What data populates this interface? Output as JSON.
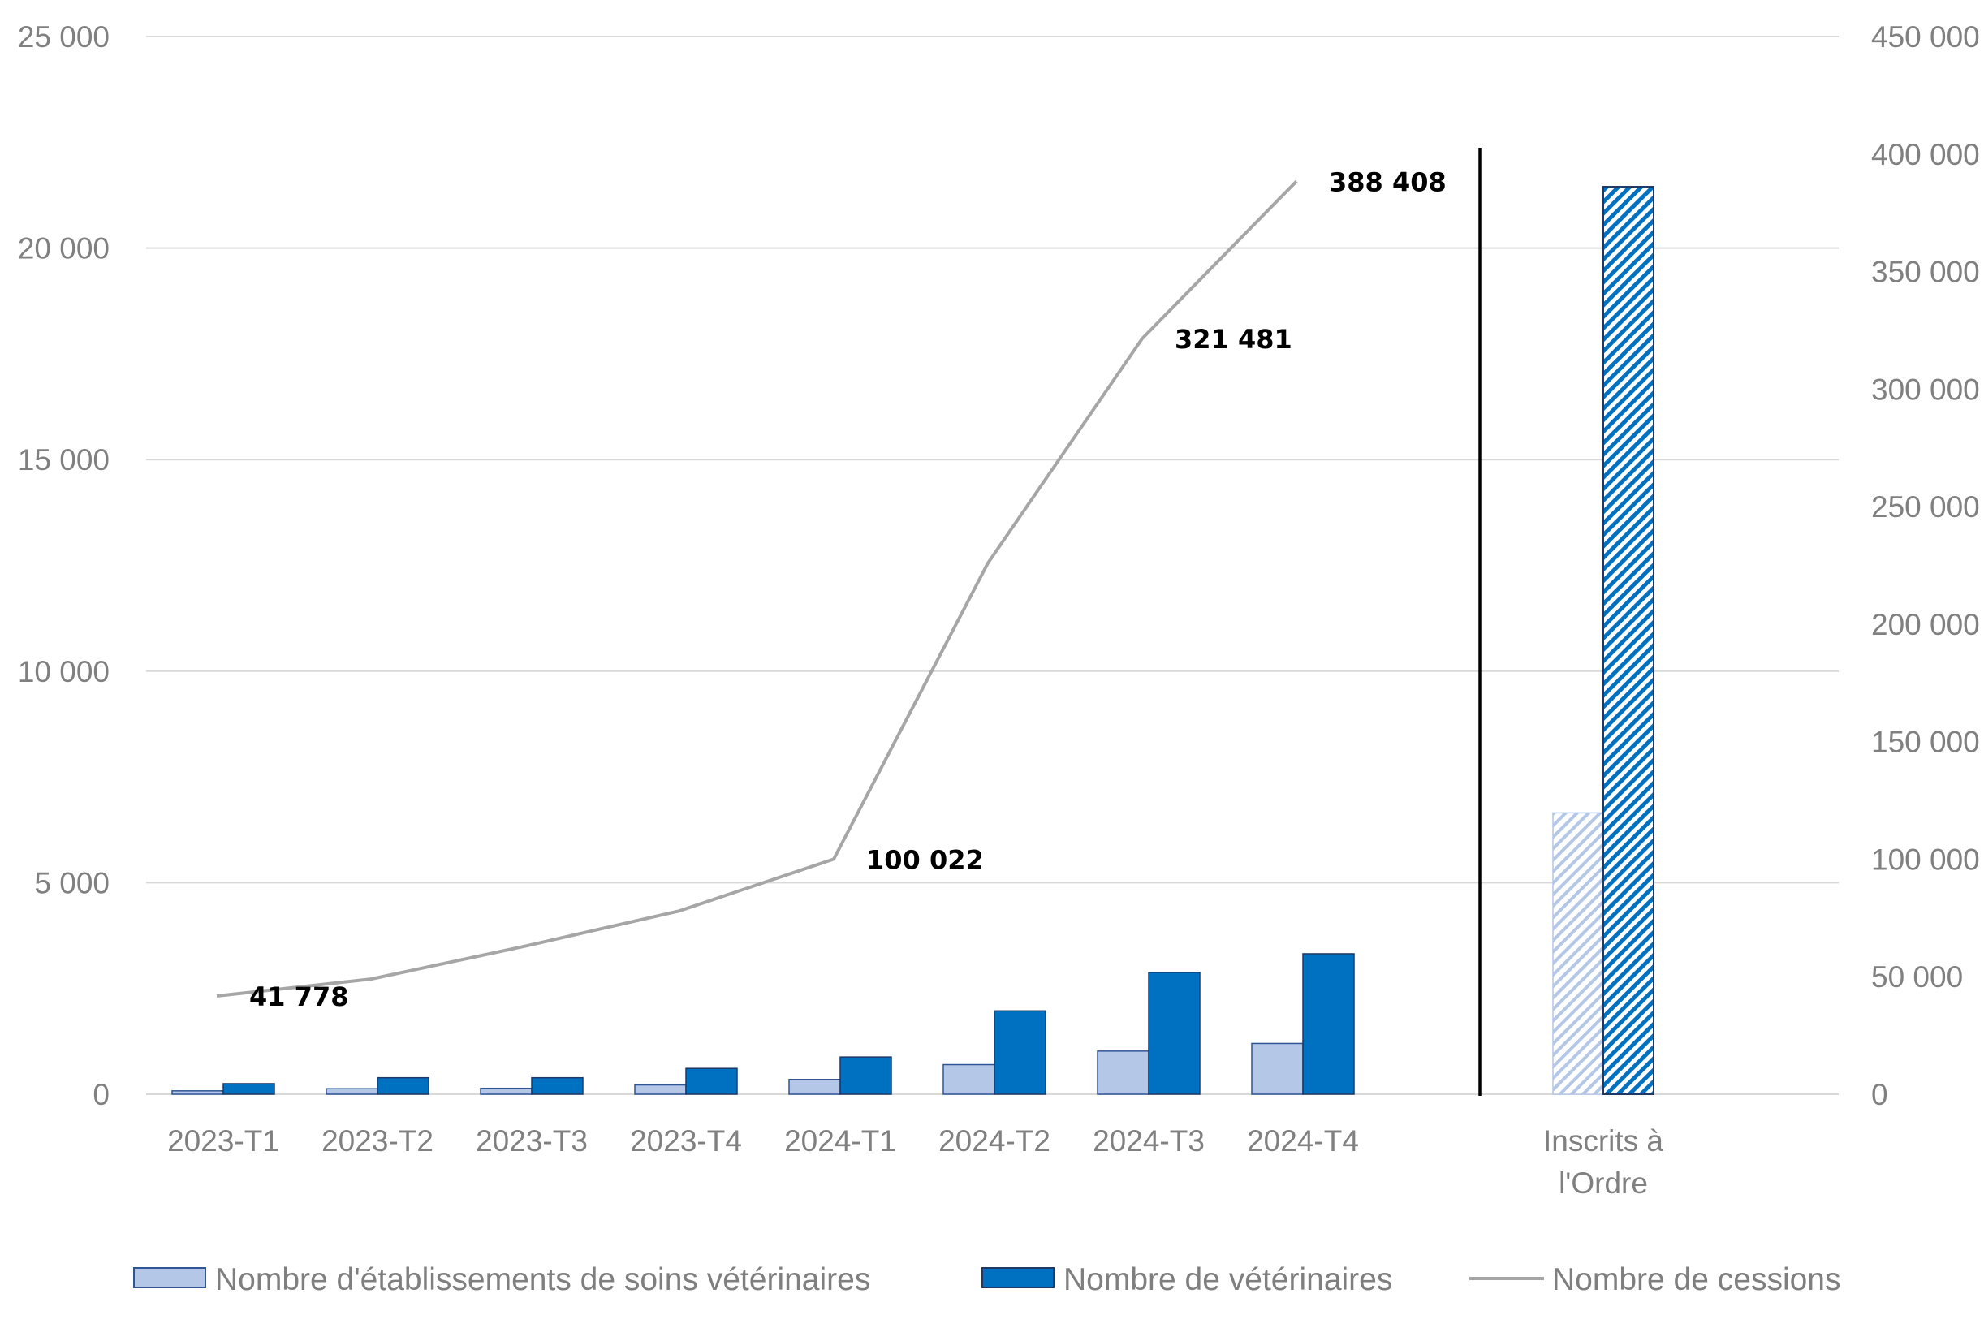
{
  "chart_data": {
    "type": "bar",
    "categories": [
      "2023-T1",
      "2023-T2",
      "2023-T3",
      "2023-T4",
      "2024-T1",
      "2024-T2",
      "2024-T3",
      "2024-T4"
    ],
    "separate_category": [
      "Inscrits à",
      "l'Ordre"
    ],
    "series": [
      {
        "name": "Nombre d'établissements de soins vétérinaires",
        "axis": "left",
        "type": "bar",
        "color": "#b4c7e7",
        "values": [
          80,
          130,
          140,
          220,
          350,
          700,
          1020,
          1200
        ],
        "separate_value": 6650,
        "separate_pattern": "hatched"
      },
      {
        "name": "Nombre de vétérinaires",
        "axis": "left",
        "type": "bar",
        "color": "#0070c0",
        "values": [
          250,
          390,
          390,
          610,
          880,
          1970,
          2880,
          3320
        ],
        "separate_value": 21450,
        "separate_pattern": "hatched"
      },
      {
        "name": "Nombre de cessions",
        "axis": "right",
        "type": "line",
        "color": "#a6a6a6",
        "values": [
          41778,
          49000,
          63000,
          78000,
          100022,
          226000,
          321481,
          388408
        ]
      }
    ],
    "data_labels": [
      {
        "series": 2,
        "index": 0,
        "text": "41 778"
      },
      {
        "series": 2,
        "index": 4,
        "text": "100 022"
      },
      {
        "series": 2,
        "index": 6,
        "text": "321 481"
      },
      {
        "series": 2,
        "index": 7,
        "text": "388 408"
      }
    ],
    "y_left": {
      "lim": [
        0,
        25000
      ],
      "ticks": [
        0,
        5000,
        10000,
        15000,
        20000,
        25000
      ],
      "tick_labels": [
        "0",
        "5 000",
        "10 000",
        "15 000",
        "20 000",
        "25 000"
      ]
    },
    "y_right": {
      "lim": [
        0,
        450000
      ],
      "ticks": [
        0,
        50000,
        100000,
        150000,
        200000,
        250000,
        300000,
        350000,
        400000,
        450000
      ],
      "tick_labels": [
        "0",
        "50 000",
        "100 000",
        "150 000",
        "200 000",
        "250 000",
        "300 000",
        "350 000",
        "400 000",
        "450 000"
      ]
    },
    "grid": true,
    "legend_position": "bottom",
    "legend": [
      {
        "text": "Nombre d'établissements de soins vétérinaires",
        "swatch": "bar",
        "color": "#b4c7e7"
      },
      {
        "text": "Nombre de vétérinaires",
        "swatch": "bar",
        "color": "#0070c0"
      },
      {
        "text": "Nombre de cessions",
        "swatch": "line",
        "color": "#a6a6a6"
      }
    ],
    "gridline_color": "#d9d9d9",
    "divider_color": "#000000"
  }
}
